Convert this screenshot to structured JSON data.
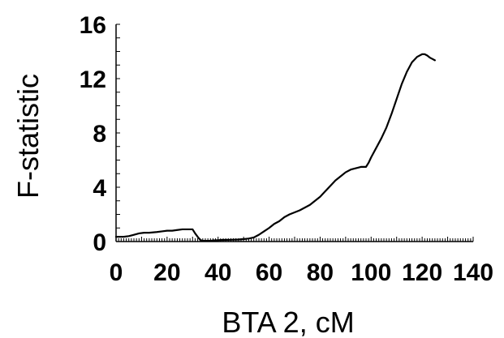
{
  "chart_data": {
    "type": "line",
    "title": "",
    "xlabel": "BTA 2, cM",
    "ylabel": "F-statistic",
    "xlim": [
      0,
      140
    ],
    "ylim": [
      0,
      16
    ],
    "x_ticks": [
      "0",
      "20",
      "40",
      "60",
      "80",
      "100",
      "120",
      "140"
    ],
    "y_ticks": [
      "0",
      "4",
      "8",
      "12",
      "16"
    ],
    "grid": false,
    "legend": "none",
    "line_color": "#000000",
    "series": [
      {
        "x": [
          0,
          3,
          5,
          7,
          9,
          11,
          13,
          16,
          18,
          20,
          22,
          24,
          26,
          28,
          30,
          31,
          32,
          33,
          34,
          36,
          38,
          40,
          42,
          45,
          48,
          50,
          52,
          54,
          56,
          58,
          60,
          62,
          64,
          66,
          68,
          70,
          72,
          74,
          76,
          78,
          80,
          82,
          84,
          86,
          88,
          90,
          92,
          94,
          96,
          98,
          99,
          100,
          102,
          104,
          106,
          108,
          110,
          112,
          114,
          116,
          118,
          120,
          121,
          122,
          123,
          124,
          125
        ],
        "y": [
          0.35,
          0.35,
          0.4,
          0.5,
          0.6,
          0.65,
          0.65,
          0.7,
          0.75,
          0.8,
          0.8,
          0.85,
          0.9,
          0.9,
          0.9,
          0.6,
          0.35,
          0.12,
          0.05,
          0.05,
          0.08,
          0.1,
          0.12,
          0.13,
          0.15,
          0.18,
          0.22,
          0.3,
          0.5,
          0.75,
          1.0,
          1.3,
          1.5,
          1.8,
          2.0,
          2.15,
          2.3,
          2.5,
          2.7,
          3.0,
          3.3,
          3.7,
          4.1,
          4.5,
          4.8,
          5.1,
          5.3,
          5.4,
          5.5,
          5.5,
          5.8,
          6.2,
          6.9,
          7.6,
          8.4,
          9.4,
          10.5,
          11.6,
          12.5,
          13.2,
          13.6,
          13.8,
          13.8,
          13.7,
          13.55,
          13.45,
          13.35
        ]
      }
    ]
  }
}
